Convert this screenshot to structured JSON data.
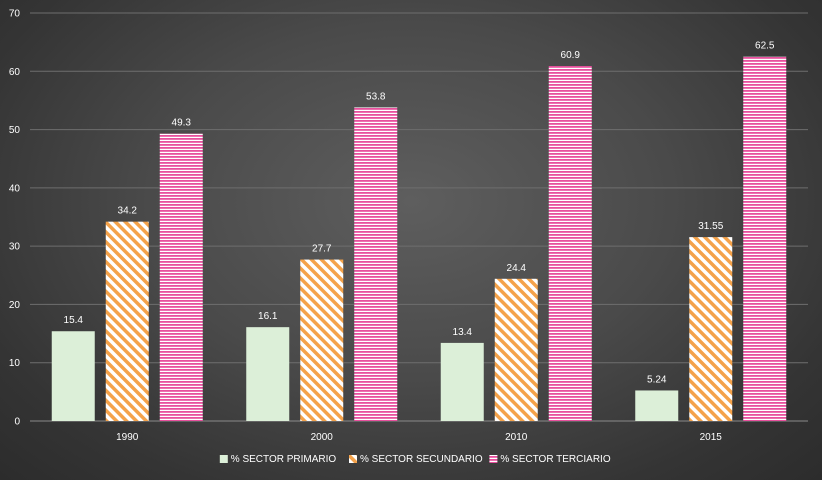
{
  "chart_data": {
    "type": "bar",
    "categories": [
      "1990",
      "2000",
      "2010",
      "2015"
    ],
    "series": [
      {
        "name": "% SECTOR PRIMARIO",
        "values": [
          15.4,
          16.1,
          13.4,
          5.24
        ],
        "labels": [
          "15.4",
          "16.1",
          "13.4",
          "5.24"
        ],
        "color": "#dcefd8",
        "pattern": "solid"
      },
      {
        "name": "% SECTOR SECUNDARIO",
        "values": [
          34.2,
          27.7,
          24.4,
          31.55
        ],
        "labels": [
          "34.2",
          "27.7",
          "24.4",
          "31.55"
        ],
        "color": "#f4a24a",
        "pattern": "diagonal"
      },
      {
        "name": "% SECTOR TERCIARIO",
        "values": [
          49.3,
          53.8,
          60.9,
          62.5
        ],
        "labels": [
          "49.3",
          "53.8",
          "60.9",
          "62.5"
        ],
        "color": "#e8509e",
        "pattern": "horizontal"
      }
    ],
    "yticks": [
      "0",
      "10",
      "20",
      "30",
      "40",
      "50",
      "60",
      "70"
    ],
    "ylim": [
      0,
      70
    ],
    "grid": true,
    "legend": "bottom-center"
  }
}
